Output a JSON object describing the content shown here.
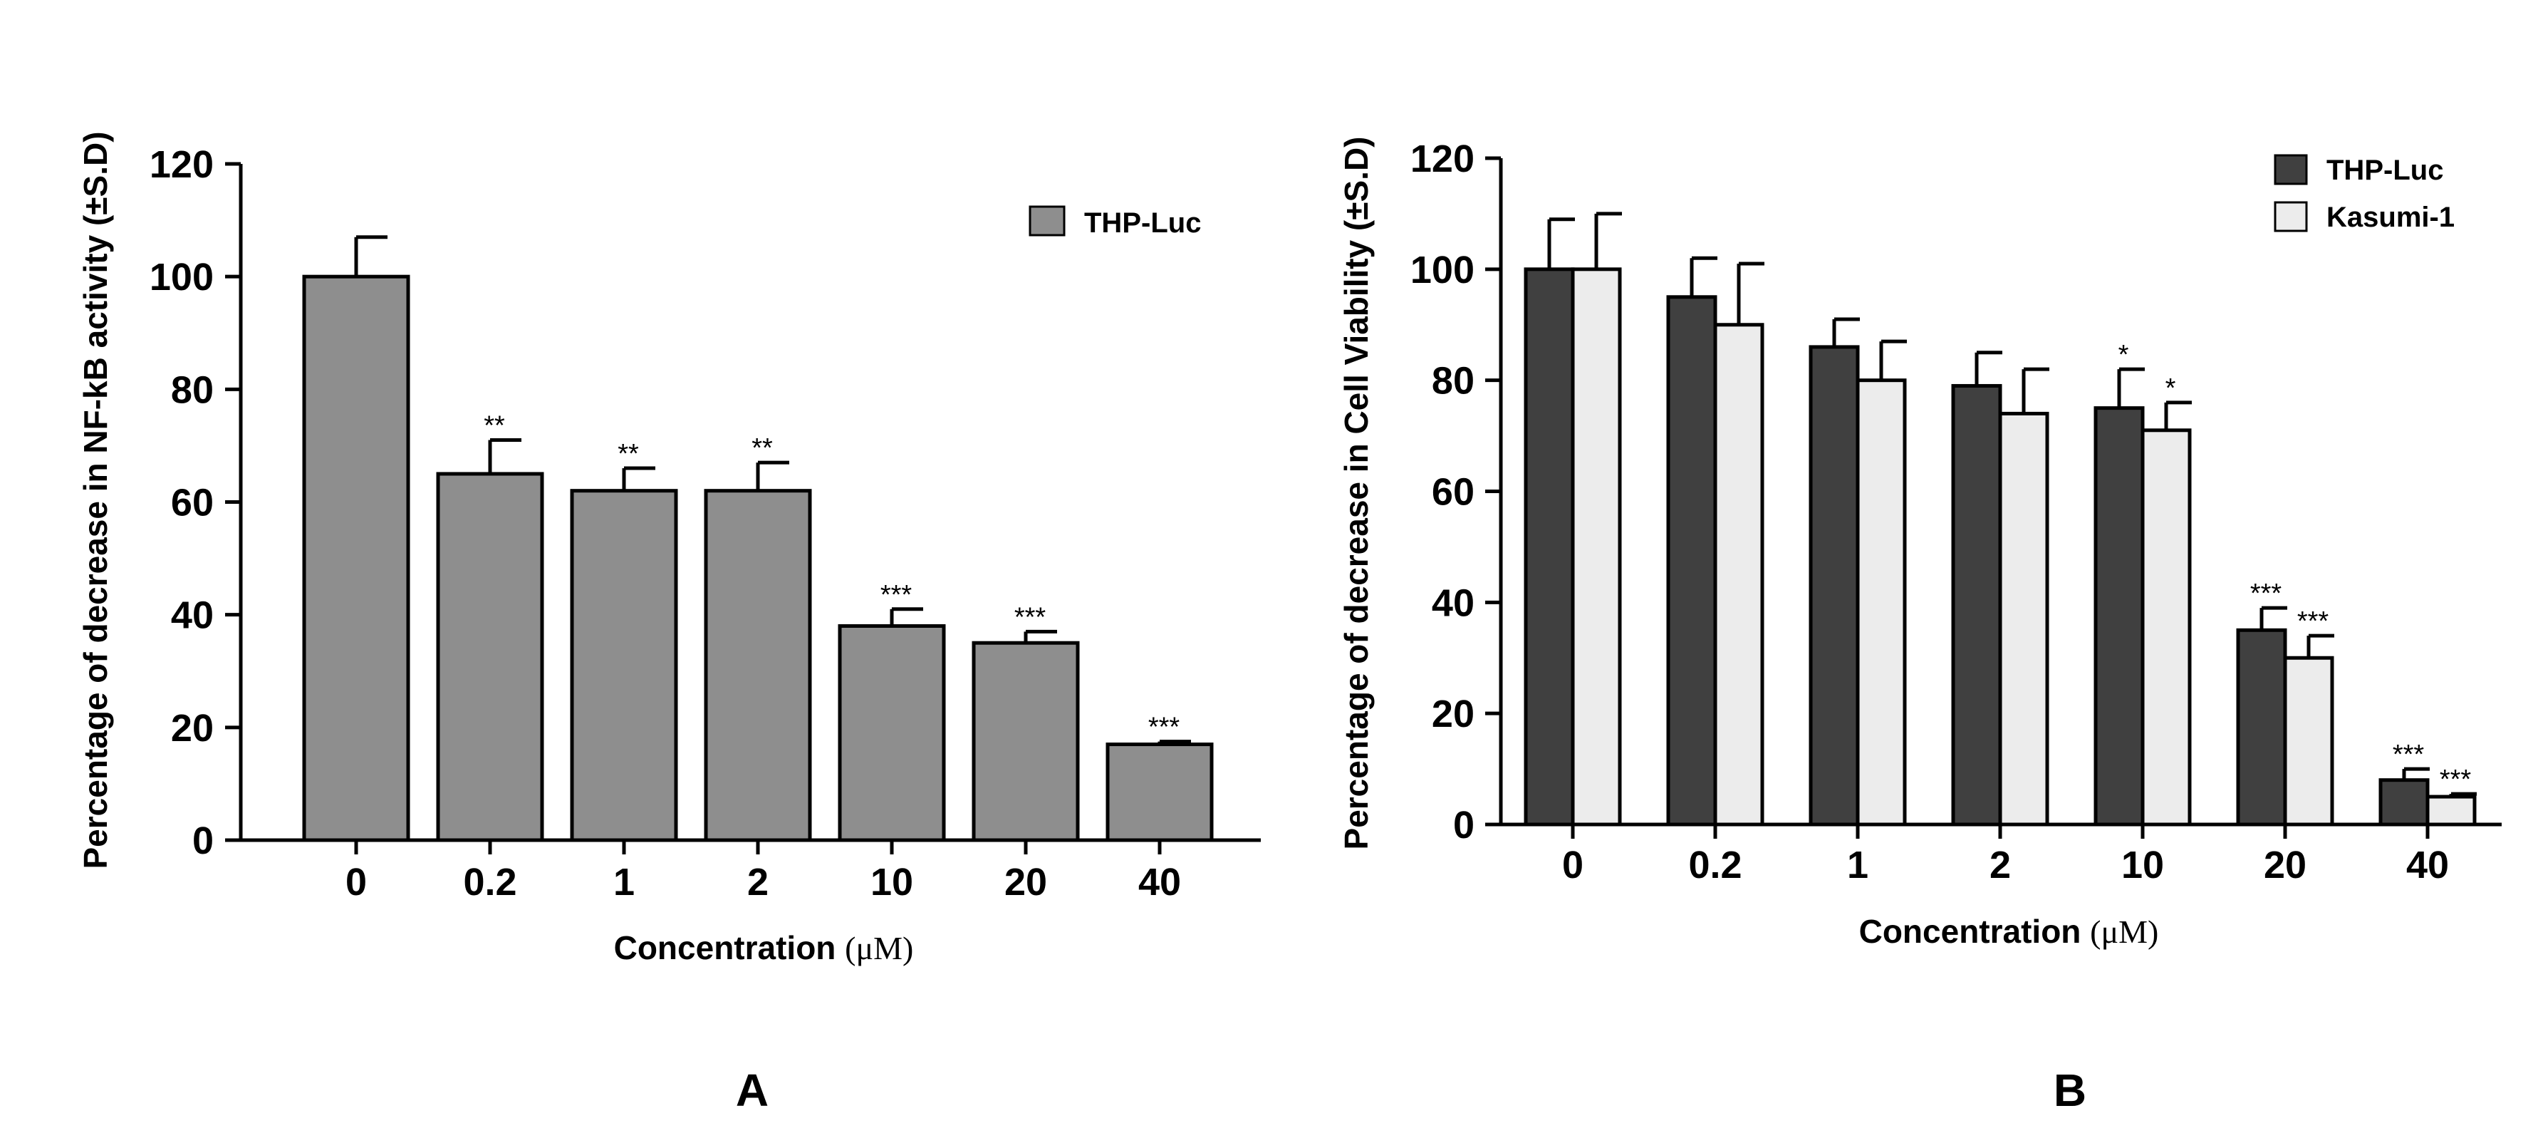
{
  "chart_data": [
    {
      "type": "bar",
      "panel": "A",
      "categories": [
        "0",
        "0.2",
        "1",
        "2",
        "10",
        "20",
        "40"
      ],
      "series": [
        {
          "name": "THP-Luc",
          "color": "#8e8e8e",
          "values": [
            100,
            65,
            62,
            62,
            38,
            35,
            17
          ],
          "errors": [
            7,
            6,
            4,
            5,
            3,
            2,
            0.5
          ],
          "significance": [
            "",
            "**",
            "**",
            "**",
            "***",
            "***",
            "***"
          ]
        }
      ],
      "xlabel": "Concentration",
      "xunit": "(μM)",
      "ylabel": "Percentage of decrease in NF-kB activity (±S.D)",
      "ylim": [
        0,
        120
      ],
      "yticks": [
        "0",
        "20",
        "40",
        "60",
        "80",
        "100",
        "120"
      ],
      "legend_position": "top-right"
    },
    {
      "type": "bar",
      "panel": "B",
      "categories": [
        "0",
        "0.2",
        "1",
        "2",
        "10",
        "20",
        "40"
      ],
      "series": [
        {
          "name": "THP-Luc",
          "color": "#404040",
          "values": [
            100,
            95,
            86,
            79,
            75,
            35,
            8
          ],
          "errors": [
            9,
            7,
            5,
            6,
            7,
            4,
            2
          ],
          "significance": [
            "",
            "",
            "",
            "",
            "*",
            "***",
            "***"
          ]
        },
        {
          "name": "Kasumi-1",
          "color": "#ececec",
          "values": [
            100,
            90,
            80,
            74,
            71,
            30,
            5
          ],
          "errors": [
            10,
            11,
            7,
            8,
            5,
            4,
            0.5
          ],
          "significance": [
            "",
            "",
            "",
            "",
            "*",
            "***",
            "***"
          ]
        }
      ],
      "xlabel": "Concentration",
      "xunit": "(μM)",
      "ylabel": "Percentage of decrease in Cell Viability (±S.D)",
      "ylim": [
        0,
        120
      ],
      "yticks": [
        "0",
        "20",
        "40",
        "60",
        "80",
        "100",
        "120"
      ],
      "legend_position": "top-right"
    }
  ]
}
